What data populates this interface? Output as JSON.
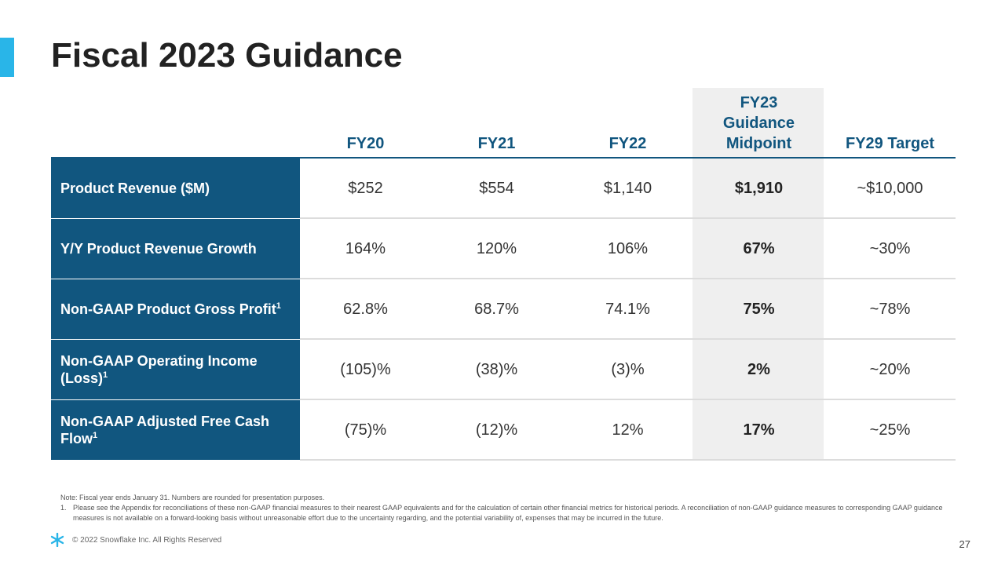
{
  "header": {
    "title": "Fiscal 2023 Guidance"
  },
  "table": {
    "columns": [
      [
        "FY20"
      ],
      [
        "FY21"
      ],
      [
        "FY22"
      ],
      [
        "FY23",
        "Guidance",
        "Midpoint"
      ],
      [
        "FY29 Target"
      ]
    ],
    "rows": [
      {
        "label": "Product Revenue ($M)",
        "cells": [
          "$252",
          "$554",
          "$1,140",
          "$1,910",
          "~$10,000"
        ]
      },
      {
        "label": "Y/Y Product Revenue Growth",
        "cells": [
          "164%",
          "120%",
          "106%",
          "67%",
          "~30%"
        ]
      },
      {
        "label": "Non-GAAP Product Gross Profit",
        "sup": "1",
        "cells": [
          "62.8%",
          "68.7%",
          "74.1%",
          "75%",
          "~78%"
        ]
      },
      {
        "label": "Non-GAAP Operating Income (Loss)",
        "sup": "1",
        "cells": [
          "(105)%",
          "(38)%",
          "(3)%",
          "2%",
          "~20%"
        ]
      },
      {
        "label": "Non-GAAP Adjusted Free Cash Flow",
        "sup": "1",
        "cells": [
          "(75)%",
          "(12)%",
          "12%",
          "17%",
          "~25%"
        ]
      }
    ]
  },
  "notes": {
    "note": "Note: Fiscal year ends January 31. Numbers are rounded for presentation purposes.",
    "items": [
      {
        "marker": "1.",
        "text": "Please see the Appendix for reconciliations of these non-GAAP financial measures to their nearest GAAP equivalents and for the calculation of certain other financial metrics for historical periods. A reconciliation of non-GAAP guidance measures to corresponding GAAP guidance measures is not available on a forward-looking basis without unreasonable effort due to the uncertainty regarding, and the potential variability of, expenses that may be incurred in the future."
      }
    ]
  },
  "footer": {
    "copyright": "© 2022 Snowflake Inc. All Rights Reserved",
    "page": "27"
  }
}
